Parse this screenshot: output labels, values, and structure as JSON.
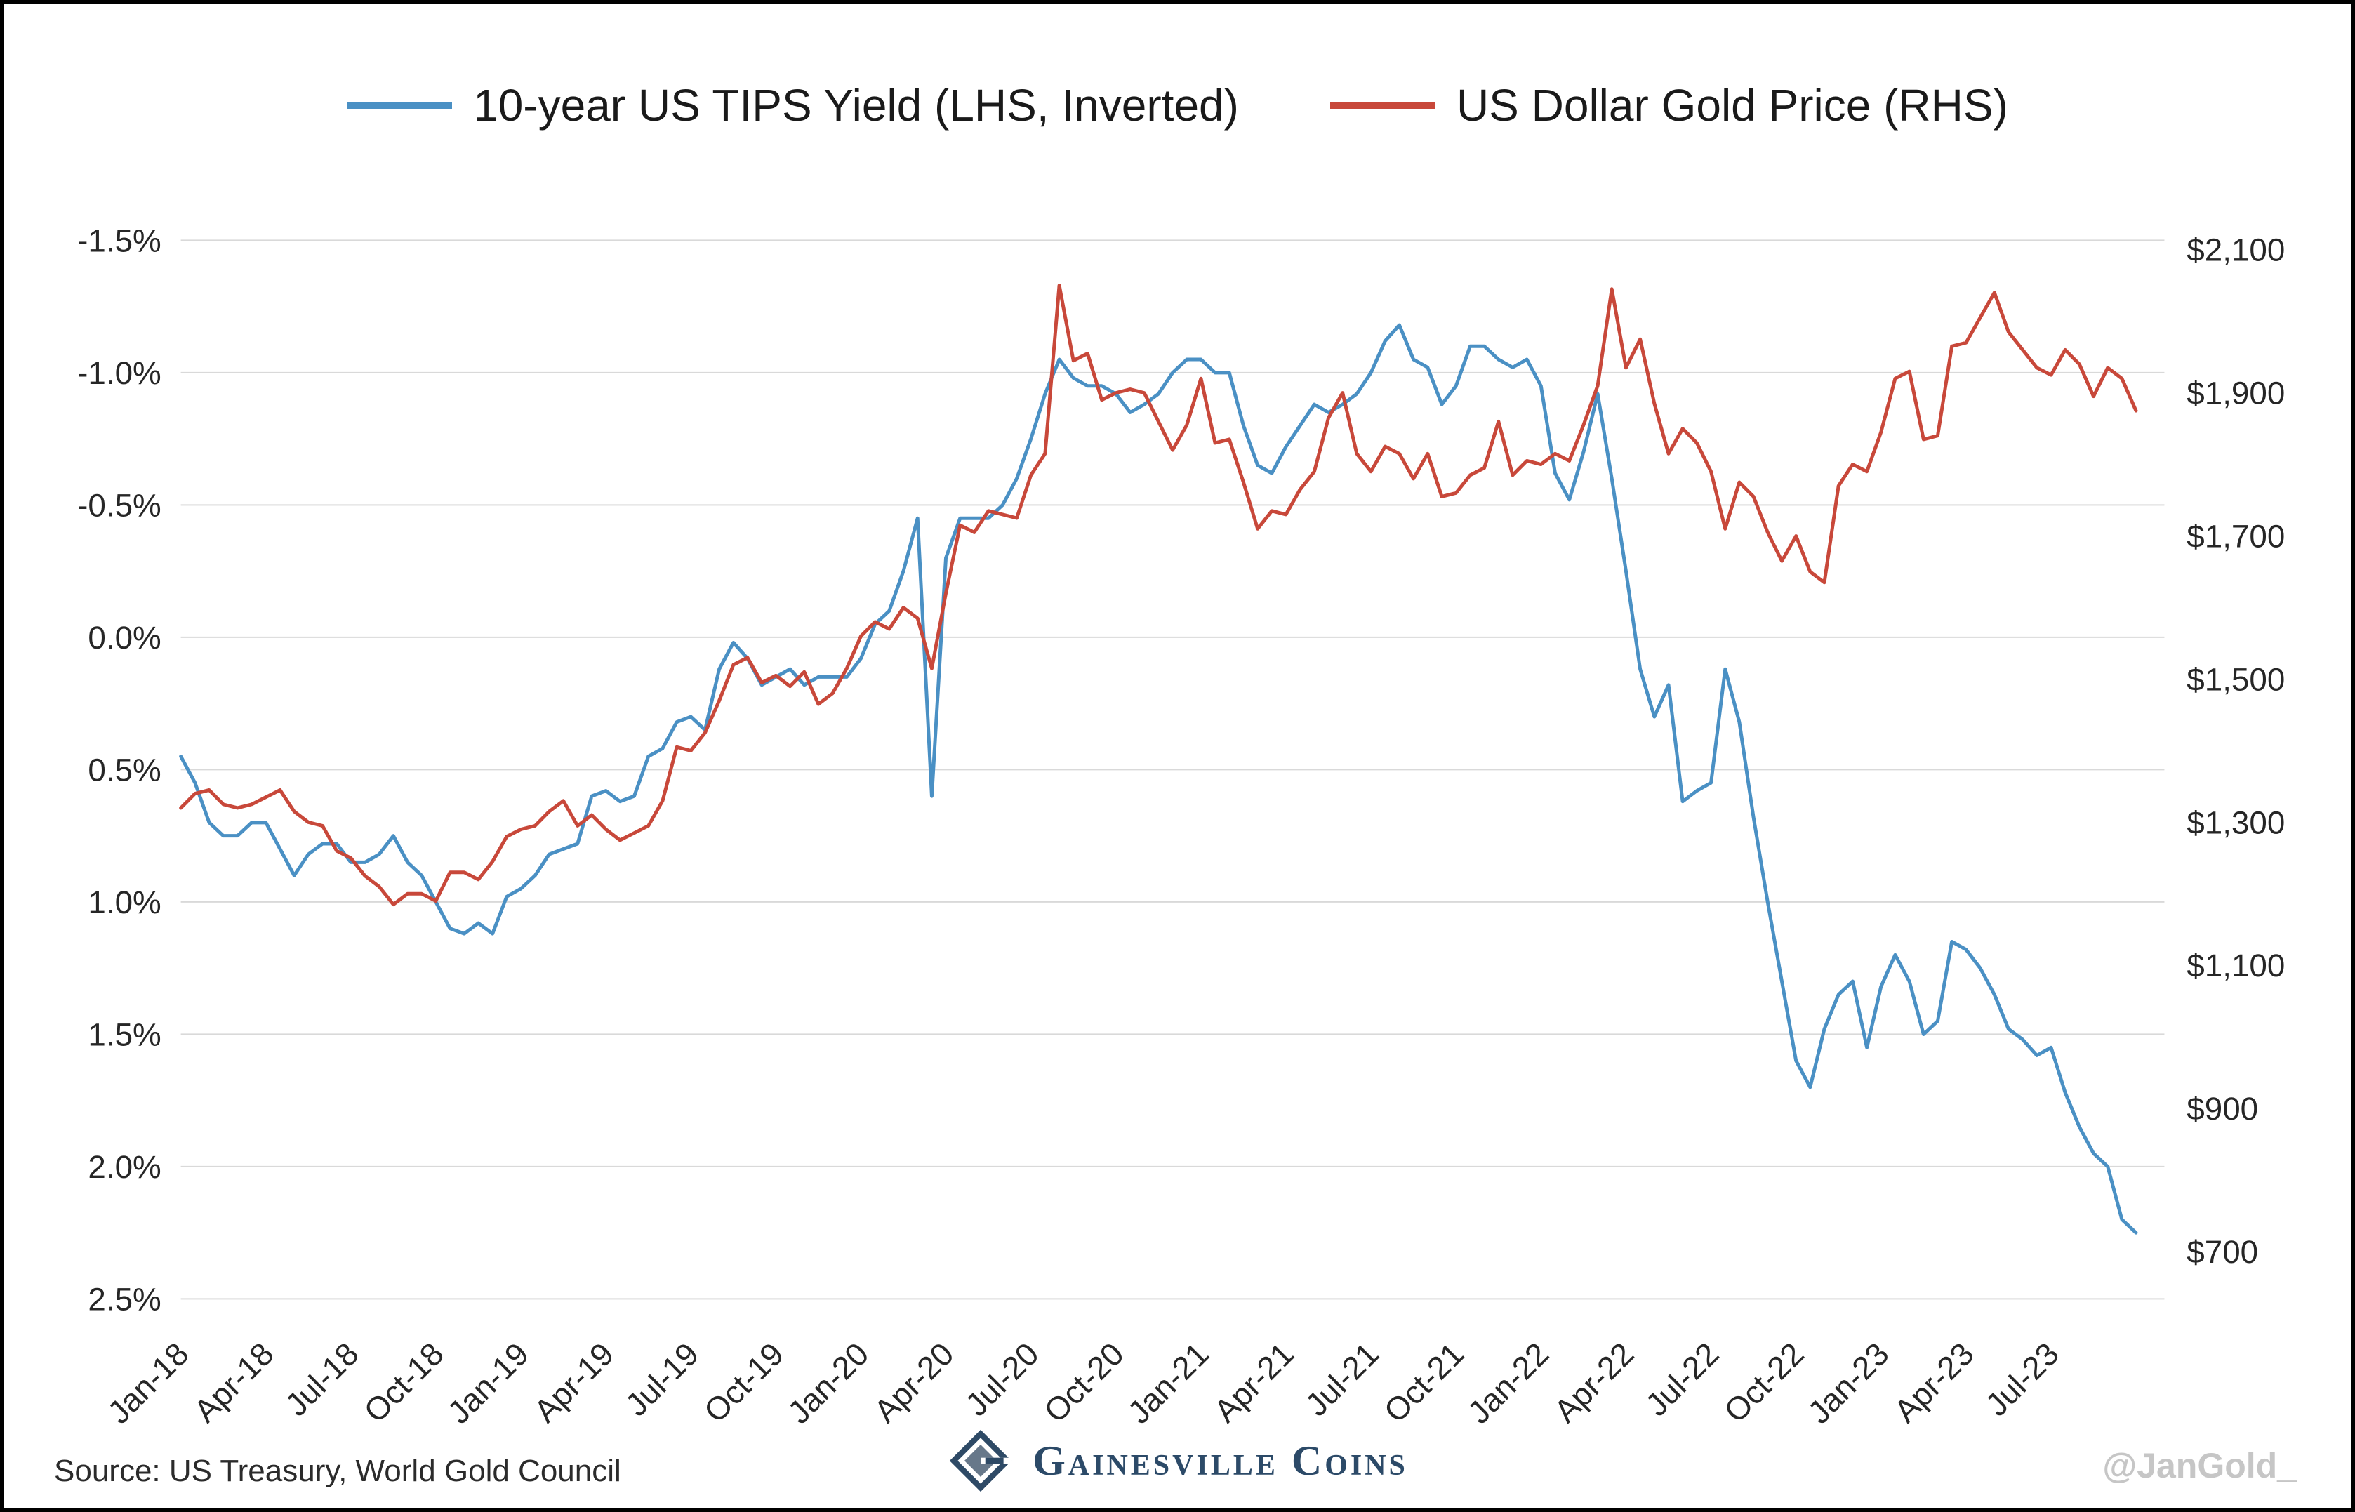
{
  "page": {
    "background": "#FFFFFF"
  },
  "colors": {
    "gridline": "#D9D9D9",
    "tick_text": "#262626",
    "tips_blue": "#4A90C4",
    "gold_red": "#C8483A",
    "brand_navy": "#2C4A68",
    "watermark_gray": "#C6C6C6"
  },
  "footer": {
    "source": "Source: US Treasury, World Gold Council",
    "brand": "Gainesville Coins",
    "watermark": "@JanGold_"
  },
  "chart_data": {
    "type": "line",
    "title": "",
    "legend_position": "top-center",
    "grid": "horizontal",
    "x": {
      "start": 0,
      "step": 0.5,
      "unit": "months since Jan-2018",
      "plot_min": 0,
      "plot_max": 70
    },
    "x_ticks": {
      "positions": [
        0,
        3,
        6,
        9,
        12,
        15,
        18,
        21,
        24,
        27,
        30,
        33,
        36,
        39,
        42,
        45,
        48,
        51,
        54,
        57,
        60,
        63,
        66
      ],
      "labels": [
        "Jan-18",
        "Apr-18",
        "Jul-18",
        "Oct-18",
        "Jan-19",
        "Apr-19",
        "Jul-19",
        "Oct-19",
        "Jan-20",
        "Apr-20",
        "Jul-20",
        "Oct-20",
        "Jan-21",
        "Apr-21",
        "Jul-21",
        "Oct-21",
        "Jan-22",
        "Apr-22",
        "Jul-22",
        "Oct-22",
        "Jan-23",
        "Apr-23",
        "Jul-23"
      ]
    },
    "y_left": {
      "inverted": true,
      "top": -1.5,
      "bottom": 2.5,
      "ticks": [
        -1.5,
        -1.0,
        -0.5,
        0.0,
        0.5,
        1.0,
        1.5,
        2.0,
        2.5
      ],
      "tick_labels": [
        "-1.5%",
        "-1.0%",
        "-0.5%",
        "0.0%",
        "0.5%",
        "1.0%",
        "1.5%",
        "2.0%",
        "2.5%"
      ]
    },
    "y_right": {
      "top": 2113,
      "bottom": 634,
      "ticks": [
        2100,
        1900,
        1700,
        1500,
        1300,
        1100,
        900,
        700
      ],
      "tick_labels": [
        "$2,100",
        "$1,900",
        "$1,700",
        "$1,500",
        "$1,300",
        "$1,100",
        "$900",
        "$700"
      ]
    },
    "series": [
      {
        "id": "tips",
        "name": "10-year US TIPS Yield (LHS, Inverted)",
        "axis": "left",
        "color": "#4A90C4",
        "values": [
          0.45,
          0.55,
          0.7,
          0.75,
          0.75,
          0.7,
          0.7,
          0.8,
          0.9,
          0.82,
          0.78,
          0.78,
          0.85,
          0.85,
          0.82,
          0.75,
          0.85,
          0.9,
          1.0,
          1.1,
          1.12,
          1.08,
          1.12,
          0.98,
          0.95,
          0.9,
          0.82,
          0.8,
          0.78,
          0.6,
          0.58,
          0.62,
          0.6,
          0.45,
          0.42,
          0.32,
          0.3,
          0.35,
          0.12,
          0.02,
          0.08,
          0.18,
          0.15,
          0.12,
          0.18,
          0.15,
          0.15,
          0.15,
          0.08,
          -0.05,
          -0.1,
          -0.25,
          -0.45,
          0.6,
          -0.3,
          -0.45,
          -0.45,
          -0.45,
          -0.5,
          -0.6,
          -0.75,
          -0.92,
          -1.05,
          -0.98,
          -0.95,
          -0.95,
          -0.92,
          -0.85,
          -0.88,
          -0.92,
          -1.0,
          -1.05,
          -1.05,
          -1.0,
          -1.0,
          -0.8,
          -0.65,
          -0.62,
          -0.72,
          -0.8,
          -0.88,
          -0.85,
          -0.88,
          -0.92,
          -1.0,
          -1.12,
          -1.18,
          -1.05,
          -1.02,
          -0.88,
          -0.95,
          -1.1,
          -1.1,
          -1.05,
          -1.02,
          -1.05,
          -0.95,
          -0.62,
          -0.52,
          -0.7,
          -0.92,
          -0.6,
          -0.25,
          0.12,
          0.3,
          0.18,
          0.62,
          0.58,
          0.55,
          0.12,
          0.32,
          0.68,
          1.0,
          1.3,
          1.6,
          1.7,
          1.48,
          1.35,
          1.3,
          1.55,
          1.32,
          1.2,
          1.3,
          1.5,
          1.45,
          1.15,
          1.18,
          1.25,
          1.35,
          1.48,
          1.52,
          1.58,
          1.55,
          1.72,
          1.85,
          1.95,
          2.0,
          2.2,
          2.25
        ]
      },
      {
        "id": "gold",
        "name": "US Dollar Gold Price (RHS)",
        "axis": "right",
        "color": "#C8483A",
        "values": [
          1320,
          1340,
          1345,
          1325,
          1320,
          1325,
          1335,
          1345,
          1315,
          1300,
          1295,
          1260,
          1250,
          1225,
          1210,
          1185,
          1200,
          1200,
          1190,
          1230,
          1230,
          1220,
          1245,
          1280,
          1290,
          1295,
          1315,
          1330,
          1295,
          1310,
          1290,
          1275,
          1285,
          1295,
          1330,
          1405,
          1400,
          1425,
          1470,
          1520,
          1530,
          1495,
          1505,
          1490,
          1510,
          1465,
          1480,
          1515,
          1560,
          1580,
          1570,
          1600,
          1585,
          1515,
          1620,
          1715,
          1705,
          1735,
          1730,
          1725,
          1785,
          1815,
          2050,
          1945,
          1955,
          1890,
          1900,
          1905,
          1900,
          1860,
          1820,
          1855,
          1920,
          1830,
          1835,
          1775,
          1710,
          1735,
          1730,
          1765,
          1790,
          1865,
          1900,
          1815,
          1790,
          1825,
          1815,
          1780,
          1815,
          1755,
          1760,
          1785,
          1795,
          1860,
          1785,
          1805,
          1800,
          1815,
          1805,
          1855,
          1910,
          2045,
          1935,
          1975,
          1885,
          1815,
          1850,
          1830,
          1790,
          1710,
          1775,
          1755,
          1705,
          1665,
          1700,
          1650,
          1635,
          1770,
          1800,
          1790,
          1845,
          1920,
          1930,
          1835,
          1840,
          1965,
          1970,
          2005,
          2040,
          1985,
          1960,
          1935,
          1925,
          1960,
          1940,
          1895,
          1935,
          1920,
          1875
        ]
      }
    ]
  }
}
